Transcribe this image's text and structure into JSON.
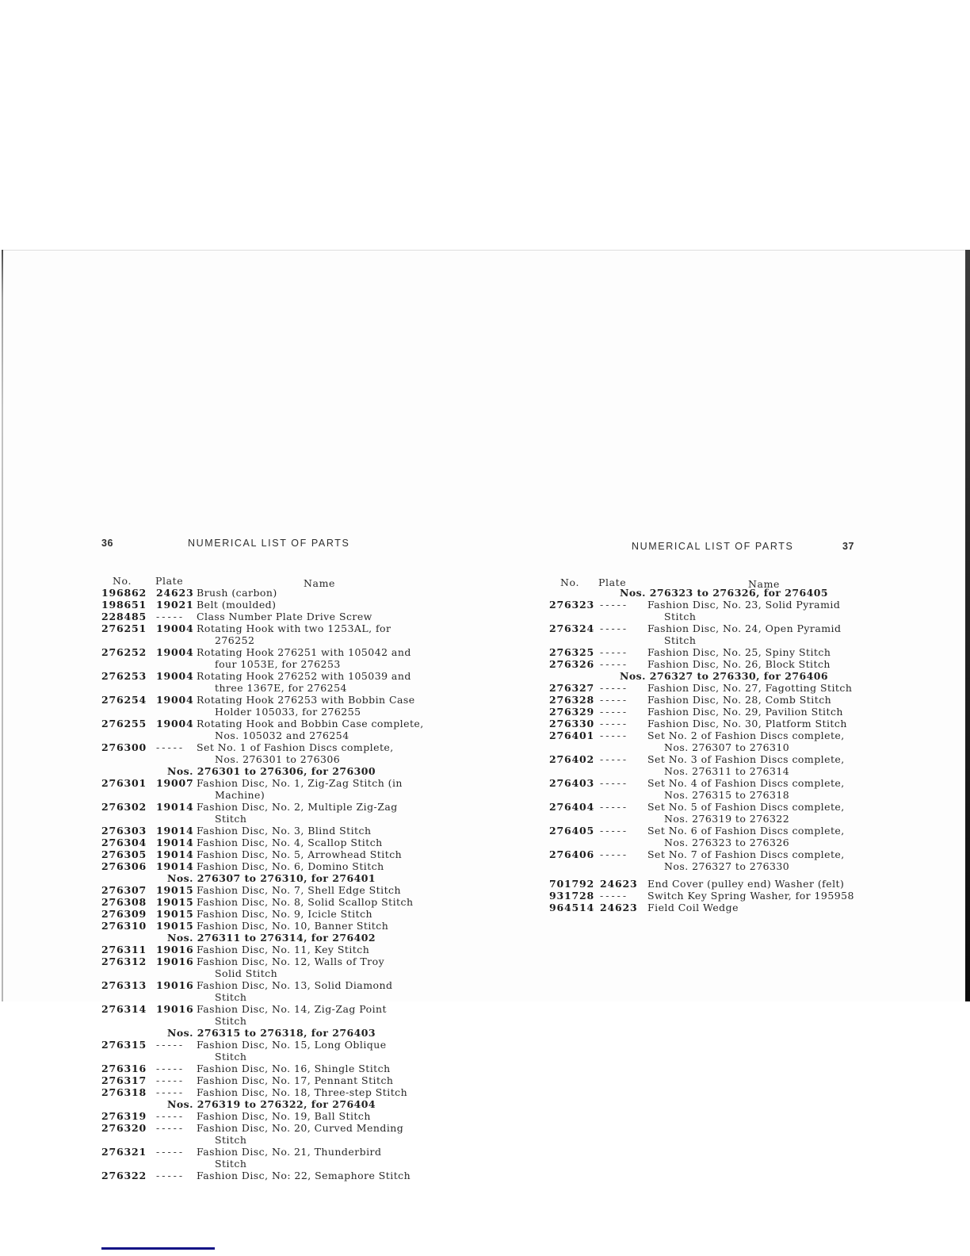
{
  "pages": [
    {
      "id": "left",
      "page_number": "36",
      "title": "NUMERICAL LIST OF PARTS",
      "columns": {
        "no": "No.",
        "plate": "Plate",
        "name": "Name"
      },
      "entries": [
        {
          "no": "196862",
          "plate": "24623",
          "name": [
            "Brush (carbon)"
          ]
        },
        {
          "no": "198651",
          "plate": "19021",
          "name": [
            "Belt (moulded)"
          ]
        },
        {
          "no": "228485",
          "plate": "-----",
          "name": [
            "Class Number Plate Drive Screw"
          ]
        },
        {
          "no": "276251",
          "plate": "19004",
          "name": [
            "Rotating Hook with two 1253AL, for",
            "276252"
          ]
        },
        {
          "no": "276252",
          "plate": "19004",
          "name": [
            "Rotating Hook 276251 with 105042 and",
            "four 1053E, for 276253"
          ]
        },
        {
          "no": "276253",
          "plate": "19004",
          "name": [
            "Rotating Hook 276252 with 105039 and",
            "three 1367E, for 276254"
          ]
        },
        {
          "no": "276254",
          "plate": "19004",
          "name": [
            "Rotating Hook 276253 with Bobbin Case",
            "Holder 105033, for 276255"
          ]
        },
        {
          "no": "276255",
          "plate": "19004",
          "name": [
            "Rotating Hook and Bobbin Case complete,",
            "Nos. 105032 and 276254"
          ]
        },
        {
          "no": "276300",
          "plate": "-----",
          "name": [
            "Set No. 1 of Fashion Discs complete,",
            "Nos. 276301 to 276306"
          ]
        },
        {
          "section": "Nos. 276301 to 276306, for 276300"
        },
        {
          "no": "276301",
          "plate": "19007",
          "name": [
            "Fashion Disc, No. 1, Zig-Zag Stitch (in",
            "Machine)"
          ]
        },
        {
          "no": "276302",
          "plate": "19014",
          "name": [
            "Fashion Disc, No. 2, Multiple Zig-Zag",
            "Stitch"
          ]
        },
        {
          "no": "276303",
          "plate": "19014",
          "name": [
            "Fashion Disc, No. 3, Blind Stitch"
          ]
        },
        {
          "no": "276304",
          "plate": "19014",
          "name": [
            "Fashion Disc, No. 4, Scallop Stitch"
          ]
        },
        {
          "no": "276305",
          "plate": "19014",
          "name": [
            "Fashion Disc, No. 5, Arrowhead Stitch"
          ]
        },
        {
          "no": "276306",
          "plate": "19014",
          "name": [
            "Fashion Disc, No. 6, Domino Stitch"
          ]
        },
        {
          "section": "Nos. 276307 to 276310, for 276401"
        },
        {
          "no": "276307",
          "plate": "19015",
          "name": [
            "Fashion Disc, No. 7, Shell Edge Stitch"
          ]
        },
        {
          "no": "276308",
          "plate": "19015",
          "name": [
            "Fashion Disc, No. 8, Solid Scallop Stitch"
          ]
        },
        {
          "no": "276309",
          "plate": "19015",
          "name": [
            "Fashion Disc, No. 9, Icicle Stitch"
          ]
        },
        {
          "no": "276310",
          "plate": "19015",
          "name": [
            "Fashion Disc, No. 10, Banner Stitch"
          ]
        },
        {
          "section": "Nos. 276311 to 276314, for 276402"
        },
        {
          "no": "276311",
          "plate": "19016",
          "name": [
            "Fashion Disc, No. 11, Key Stitch"
          ]
        },
        {
          "no": "276312",
          "plate": "19016",
          "name": [
            "Fashion Disc, No. 12, Walls of Troy",
            "Solid Stitch"
          ]
        },
        {
          "no": "276313",
          "plate": "19016",
          "name": [
            "Fashion Disc, No. 13, Solid Diamond",
            "Stitch"
          ]
        },
        {
          "no": "276314",
          "plate": "19016",
          "name": [
            "Fashion Disc, No. 14, Zig-Zag Point",
            "Stitch"
          ]
        },
        {
          "section": "Nos. 276315 to 276318, for 276403"
        },
        {
          "no": "276315",
          "plate": "-----",
          "name": [
            "Fashion Disc, No. 15, Long Oblique",
            "Stitch"
          ]
        },
        {
          "no": "276316",
          "plate": "-----",
          "name": [
            "Fashion Disc, No. 16, Shingle Stitch"
          ]
        },
        {
          "no": "276317",
          "plate": "-----",
          "name": [
            "Fashion Disc, No. 17, Pennant Stitch"
          ]
        },
        {
          "no": "276318",
          "plate": "-----",
          "name": [
            "Fashion Disc, No. 18, Three-step Stitch"
          ]
        },
        {
          "section": "Nos. 276319 to 276322, for 276404"
        },
        {
          "no": "276319",
          "plate": "-----",
          "name": [
            "Fashion Disc, No. 19, Ball Stitch"
          ]
        },
        {
          "no": "276320",
          "plate": "-----",
          "name": [
            "Fashion Disc, No. 20, Curved Mending",
            "Stitch"
          ]
        },
        {
          "no": "276321",
          "plate": "-----",
          "name": [
            "Fashion Disc, No. 21, Thunderbird",
            "Stitch"
          ]
        },
        {
          "no": "276322",
          "plate": "-----",
          "name": [
            "Fashion Disc, No: 22, Semaphore Stitch"
          ]
        }
      ]
    },
    {
      "id": "right",
      "page_number": "37",
      "title": "NUMERICAL LIST OF PARTS",
      "columns": {
        "no": "No.",
        "plate": "Plate",
        "name": "Name"
      },
      "entries": [
        {
          "section": "Nos. 276323 to 276326, for 276405"
        },
        {
          "no": "276323",
          "plate": "-----",
          "name": [
            "Fashion Disc, No. 23, Solid Pyramid",
            "Stitch"
          ]
        },
        {
          "no": "276324",
          "plate": "-----",
          "name": [
            "Fashion Disc, No. 24, Open Pyramid",
            "Stitch"
          ]
        },
        {
          "no": "276325",
          "plate": "-----",
          "name": [
            "Fashion Disc, No. 25, Spiny Stitch"
          ]
        },
        {
          "no": "276326",
          "plate": "-----",
          "name": [
            "Fashion Disc, No. 26, Block Stitch"
          ]
        },
        {
          "section": "Nos. 276327 to 276330, for 276406"
        },
        {
          "no": "276327",
          "plate": "-----",
          "name": [
            "Fashion Disc, No. 27, Fagotting Stitch"
          ]
        },
        {
          "no": "276328",
          "plate": "-----",
          "name": [
            "Fashion Disc, No. 28, Comb Stitch"
          ]
        },
        {
          "no": "276329",
          "plate": "-----",
          "name": [
            "Fashion Disc, No. 29, Pavilion Stitch"
          ]
        },
        {
          "no": "276330",
          "plate": "-----",
          "name": [
            "Fashion Disc, No. 30, Platform Stitch"
          ]
        },
        {
          "no": "276401",
          "plate": "-----",
          "name": [
            "Set No. 2 of Fashion Discs complete,",
            "Nos. 276307 to 276310"
          ]
        },
        {
          "no": "276402",
          "plate": "-----",
          "name": [
            "Set No. 3 of Fashion Discs complete,",
            "Nos. 276311 to 276314"
          ]
        },
        {
          "no": "276403",
          "plate": "-----",
          "name": [
            "Set No. 4 of Fashion Discs complete,",
            "Nos. 276315 to 276318"
          ]
        },
        {
          "no": "276404",
          "plate": "-----",
          "name": [
            "Set No. 5 of Fashion Discs complete,",
            "Nos. 276319 to 276322"
          ]
        },
        {
          "no": "276405",
          "plate": "-----",
          "name": [
            "Set No. 6 of Fashion Discs complete,",
            "Nos. 276323 to 276326"
          ]
        },
        {
          "no": "276406",
          "plate": "-----",
          "name": [
            "Set No. 7 of Fashion Discs complete,",
            "Nos. 276327 to 276330"
          ]
        },
        {
          "no": "701792",
          "plate": "24623",
          "name": [
            "End Cover (pulley end) Washer (felt)"
          ],
          "gap": true
        },
        {
          "no": "931728",
          "plate": "-----",
          "name": [
            "Switch Key Spring Washer, for 195958"
          ]
        },
        {
          "no": "964514",
          "plate": "24623",
          "name": [
            "Field Coil Wedge"
          ]
        }
      ]
    }
  ],
  "artifacts": {
    "blue_underline_color": "#141487"
  }
}
